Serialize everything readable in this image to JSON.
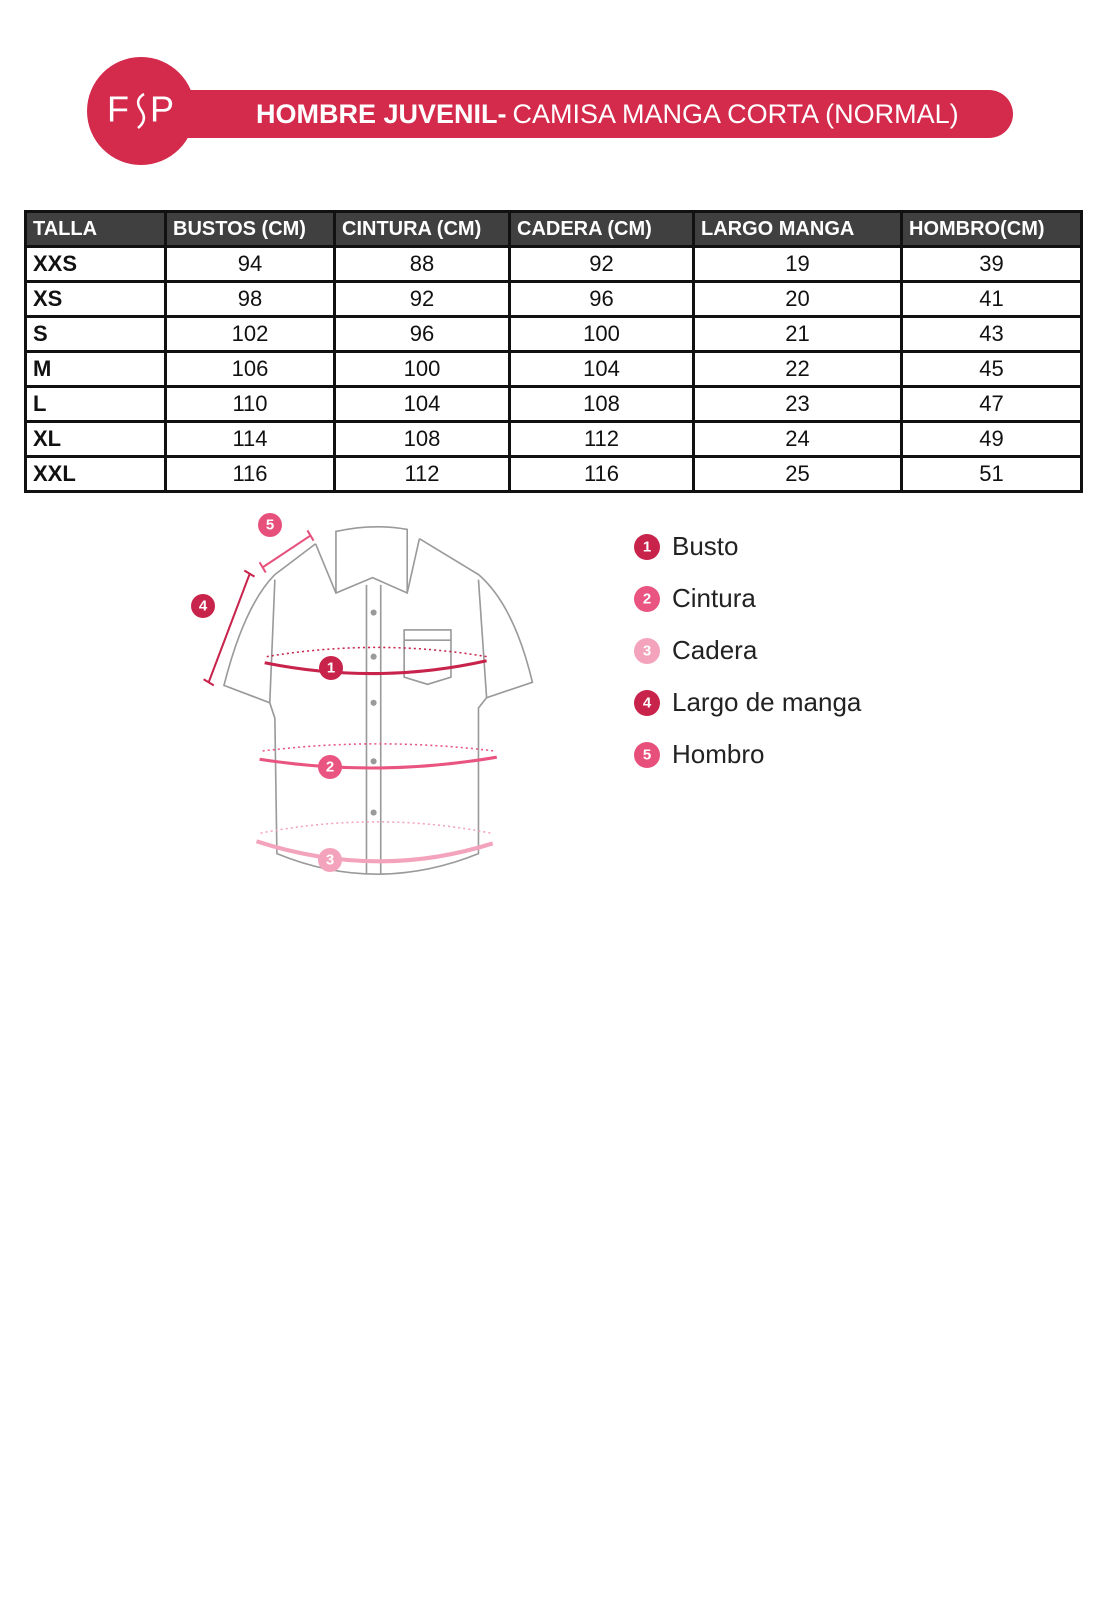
{
  "header": {
    "logo": [
      "F",
      "P"
    ],
    "title_bold": "HOMBRE JUVENIL-",
    "title_regular": "CAMISA MANGA CORTA (NORMAL)"
  },
  "table": {
    "columns": [
      "TALLA",
      "BUSTOS (CM)",
      "CINTURA (CM)",
      "CADERA (CM)",
      "LARGO MANGA",
      "HOMBRO(CM)"
    ],
    "rows": [
      [
        "XXS",
        94,
        88,
        92,
        19,
        39
      ],
      [
        "XS",
        98,
        92,
        96,
        20,
        41
      ],
      [
        "S",
        102,
        96,
        100,
        21,
        43
      ],
      [
        "M",
        106,
        100,
        104,
        22,
        45
      ],
      [
        "L",
        110,
        104,
        108,
        23,
        47
      ],
      [
        "XL",
        114,
        108,
        112,
        24,
        49
      ],
      [
        "XXL",
        116,
        112,
        116,
        25,
        51
      ]
    ]
  },
  "legend": {
    "items": [
      {
        "number": "1",
        "label": "Busto"
      },
      {
        "number": "2",
        "label": "Cintura"
      },
      {
        "number": "3",
        "label": "Cadera"
      },
      {
        "number": "4",
        "label": "Largo de manga"
      },
      {
        "number": "5",
        "label": "Hombro"
      }
    ]
  }
}
